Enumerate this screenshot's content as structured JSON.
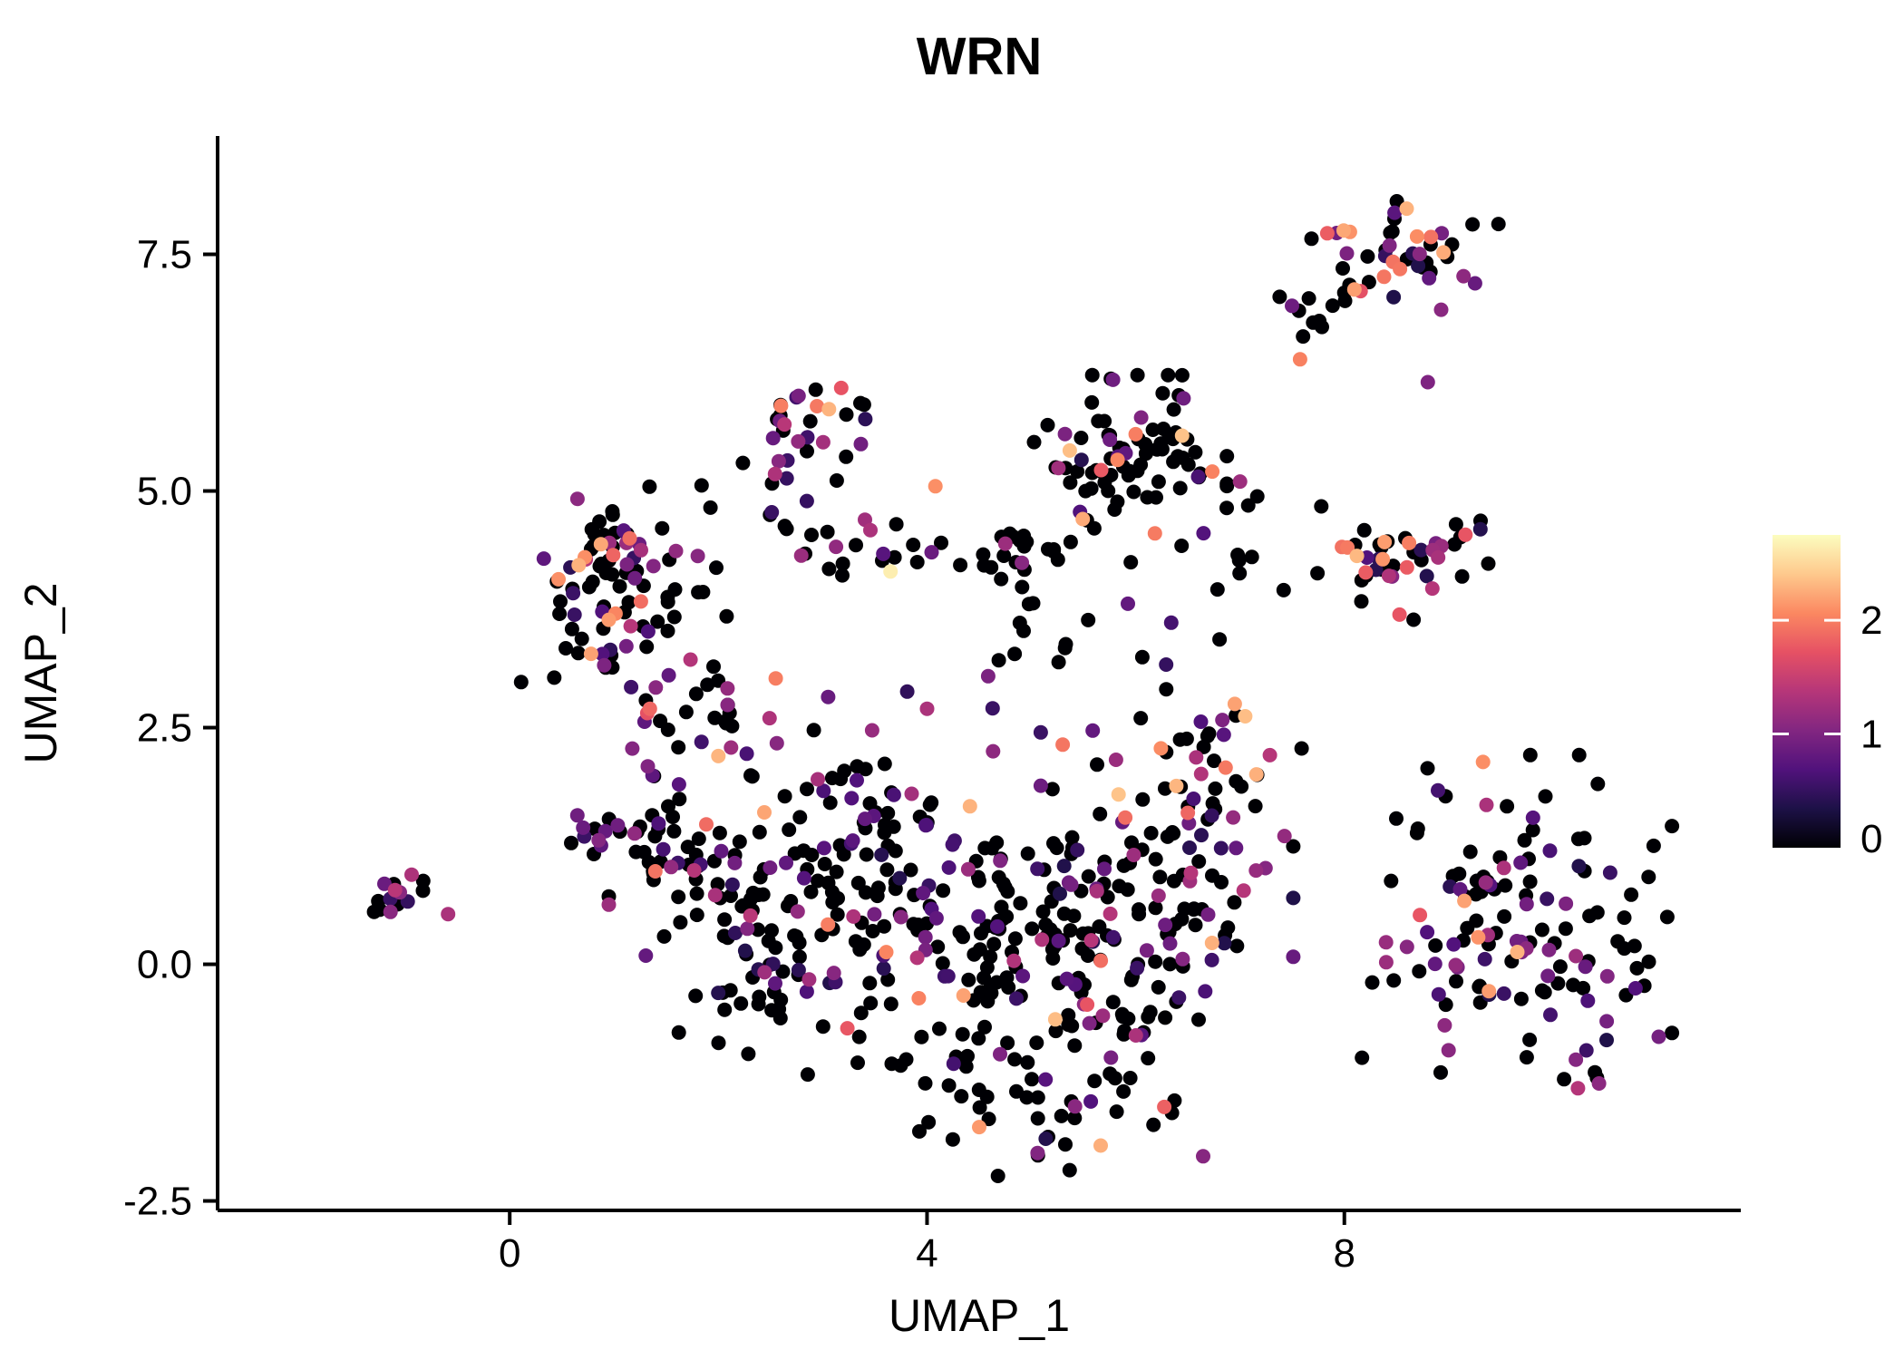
{
  "title": "WRN",
  "colors": {
    "background": "#ffffff",
    "axis": "#000000",
    "title": "#000000",
    "zero_expression": "#000004"
  },
  "chart_data": {
    "type": "scatter",
    "title": "WRN",
    "xlabel": "UMAP_1",
    "ylabel": "UMAP_2",
    "xlim": [
      -2.8,
      11.8
    ],
    "ylim": [
      -2.6,
      8.75
    ],
    "grid": false,
    "x_ticks": [
      [
        0,
        "0"
      ],
      [
        4,
        "4"
      ],
      [
        8,
        "8"
      ]
    ],
    "y_ticks": [
      [
        -2.5,
        "-2.5"
      ],
      [
        0,
        "0.0"
      ],
      [
        2.5,
        "2.5"
      ],
      [
        5,
        "5.0"
      ],
      [
        7.5,
        "7.5"
      ]
    ],
    "point_radius": 8,
    "seed": 42,
    "colorbar": {
      "position": "right",
      "range": [
        0,
        2.75
      ],
      "tick_values": [
        [
          0,
          "0"
        ],
        [
          1,
          "1"
        ],
        [
          2,
          "2"
        ]
      ],
      "palette_magma": [
        [
          0.0,
          "#000004"
        ],
        [
          0.125,
          "#1d1147"
        ],
        [
          0.25,
          "#51127c"
        ],
        [
          0.375,
          "#822681"
        ],
        [
          0.5,
          "#b63679"
        ],
        [
          0.625,
          "#e65164"
        ],
        [
          0.75,
          "#fb8861"
        ],
        [
          0.875,
          "#fec98d"
        ],
        [
          1.0,
          "#fcfdbf"
        ]
      ]
    },
    "cluster_fields": [
      "cx",
      "cy",
      "sx",
      "sy",
      "n",
      "p_zero",
      "p_low",
      "p_high"
    ],
    "clusters": [
      [
        -1.05,
        0.7,
        0.22,
        0.12,
        16,
        0.45,
        0.55,
        0.0
      ],
      [
        1.1,
        3.95,
        0.45,
        0.55,
        95,
        0.58,
        0.32,
        0.1
      ],
      [
        1.55,
        2.7,
        0.28,
        0.25,
        14,
        0.6,
        0.35,
        0.05
      ],
      [
        2.85,
        5.8,
        0.28,
        0.28,
        26,
        0.6,
        0.32,
        0.08
      ],
      [
        2.7,
        5.05,
        0.22,
        0.28,
        9,
        0.75,
        0.25,
        0.0
      ],
      [
        3.35,
        4.35,
        0.45,
        0.22,
        20,
        0.6,
        0.35,
        0.05
      ],
      [
        4.75,
        4.4,
        0.3,
        0.15,
        20,
        0.72,
        0.28,
        0.0
      ],
      [
        5.95,
        5.3,
        0.42,
        0.42,
        88,
        0.78,
        0.15,
        0.07
      ],
      [
        5.3,
        3.4,
        0.7,
        0.45,
        22,
        0.7,
        0.3,
        0.0
      ],
      [
        7.1,
        4.6,
        0.3,
        0.4,
        10,
        0.8,
        0.2,
        0.0
      ],
      [
        8.4,
        7.4,
        0.5,
        0.3,
        50,
        0.55,
        0.3,
        0.15
      ],
      [
        7.8,
        6.6,
        0.25,
        0.25,
        6,
        0.65,
        0.2,
        0.15
      ],
      [
        8.5,
        4.3,
        0.4,
        0.3,
        44,
        0.55,
        0.3,
        0.15
      ],
      [
        2.05,
        0.6,
        0.5,
        0.65,
        70,
        0.66,
        0.3,
        0.04
      ],
      [
        1.55,
        1.3,
        0.3,
        0.25,
        22,
        0.7,
        0.3,
        0.0
      ],
      [
        0.9,
        1.35,
        0.22,
        0.18,
        12,
        0.6,
        0.4,
        0.0
      ],
      [
        3.0,
        0.2,
        0.55,
        0.65,
        60,
        0.7,
        0.27,
        0.03
      ],
      [
        4.2,
        0.6,
        0.65,
        0.75,
        90,
        0.7,
        0.27,
        0.03
      ],
      [
        5.3,
        0.2,
        0.65,
        0.75,
        100,
        0.72,
        0.25,
        0.03
      ],
      [
        6.3,
        0.8,
        0.55,
        0.75,
        80,
        0.7,
        0.27,
        0.03
      ],
      [
        5.0,
        -1.4,
        0.75,
        0.38,
        50,
        0.72,
        0.24,
        0.04
      ],
      [
        6.6,
        2.2,
        0.45,
        0.38,
        32,
        0.62,
        0.3,
        0.08
      ],
      [
        3.3,
        1.9,
        0.45,
        0.42,
        30,
        0.7,
        0.3,
        0.0
      ],
      [
        1.9,
        2.3,
        0.3,
        0.3,
        12,
        0.65,
        0.35,
        0.0
      ],
      [
        9.6,
        0.45,
        0.7,
        0.8,
        120,
        0.58,
        0.37,
        0.05
      ],
      [
        10.6,
        -0.1,
        0.32,
        0.5,
        16,
        0.55,
        0.45,
        0.0
      ]
    ],
    "extra_point_fields": [
      "x",
      "y",
      "expression"
    ],
    "extra_points": [
      [
        3.65,
        4.15,
        2.65
      ],
      [
        4.08,
        5.05,
        2.1
      ],
      [
        6.95,
        2.75,
        2.2
      ],
      [
        7.05,
        2.62,
        2.35
      ],
      [
        8.95,
        7.52,
        2.25
      ],
      [
        8.62,
        4.45,
        2.0
      ],
      [
        0.72,
        4.3,
        2.1
      ],
      [
        0.78,
        3.28,
        2.2
      ],
      [
        2.55,
        3.02,
        2.0
      ],
      [
        4.35,
        -0.33,
        2.2
      ],
      [
        4.5,
        -1.72,
        2.15
      ],
      [
        5.3,
        2.32,
        1.95
      ],
      [
        3.05,
        0.42,
        2.0
      ],
      [
        2.0,
        2.2,
        2.3
      ],
      [
        9.15,
        0.67,
        2.2
      ],
      [
        2.6,
        5.9,
        2.0
      ],
      [
        6.0,
        5.6,
        2.0
      ],
      [
        1.15,
        4.5,
        1.9
      ],
      [
        5.9,
        1.55,
        1.9
      ],
      [
        6.5,
        1.6,
        1.85
      ],
      [
        4.7,
        -0.95,
        1.0
      ],
      [
        7.0,
        5.1,
        1.2
      ],
      [
        8.8,
        6.15,
        1.0
      ],
      [
        4.0,
        2.7,
        1.3
      ]
    ]
  }
}
